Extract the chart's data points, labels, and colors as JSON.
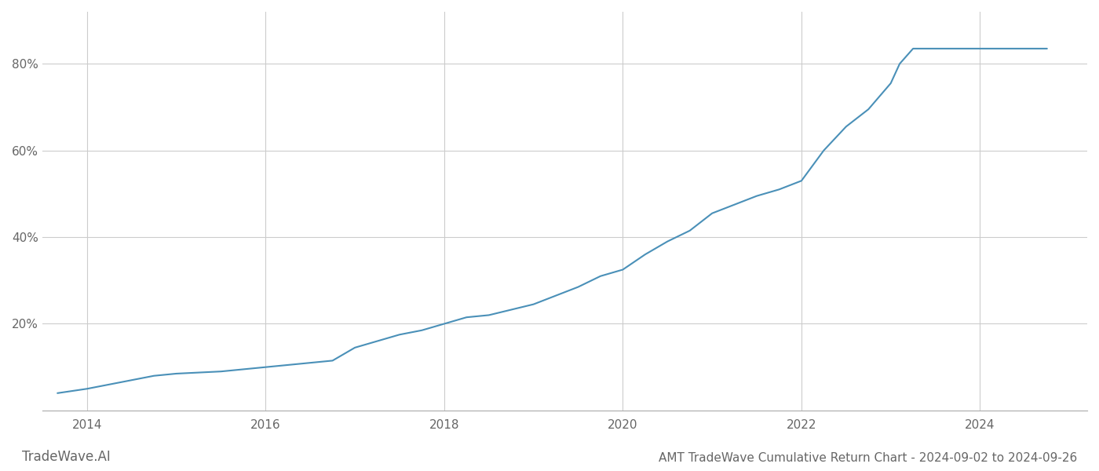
{
  "title": "AMT TradeWave Cumulative Return Chart - 2024-09-02 to 2024-09-26",
  "watermark": "TradeWave.AI",
  "line_color": "#4a90b8",
  "background_color": "#ffffff",
  "grid_color": "#cccccc",
  "x_years": [
    2014,
    2016,
    2018,
    2020,
    2022,
    2024
  ],
  "xlim": [
    2013.5,
    2025.2
  ],
  "ylim": [
    0.0,
    0.92
  ],
  "yticks": [
    0.2,
    0.4,
    0.6,
    0.8
  ],
  "ytick_labels": [
    "20%",
    "40%",
    "60%",
    "80%"
  ],
  "data_x": [
    2013.67,
    2014.0,
    2014.5,
    2014.75,
    2015.0,
    2015.5,
    2015.75,
    2016.0,
    2016.5,
    2016.75,
    2017.0,
    2017.5,
    2017.75,
    2018.0,
    2018.25,
    2018.5,
    2019.0,
    2019.5,
    2019.75,
    2020.0,
    2020.25,
    2020.5,
    2020.75,
    2021.0,
    2021.25,
    2021.5,
    2021.75,
    2022.0,
    2022.25,
    2022.5,
    2022.75,
    2023.0,
    2023.1,
    2023.25,
    2023.5,
    2024.0,
    2024.75
  ],
  "data_y": [
    0.04,
    0.05,
    0.07,
    0.08,
    0.085,
    0.09,
    0.095,
    0.1,
    0.11,
    0.115,
    0.145,
    0.175,
    0.185,
    0.2,
    0.215,
    0.22,
    0.245,
    0.285,
    0.31,
    0.325,
    0.36,
    0.39,
    0.415,
    0.455,
    0.475,
    0.495,
    0.51,
    0.53,
    0.6,
    0.655,
    0.695,
    0.755,
    0.8,
    0.835,
    0.835,
    0.835,
    0.835
  ],
  "title_fontsize": 11,
  "watermark_fontsize": 12,
  "tick_fontsize": 11,
  "tick_color": "#666666",
  "spine_color": "#aaaaaa"
}
